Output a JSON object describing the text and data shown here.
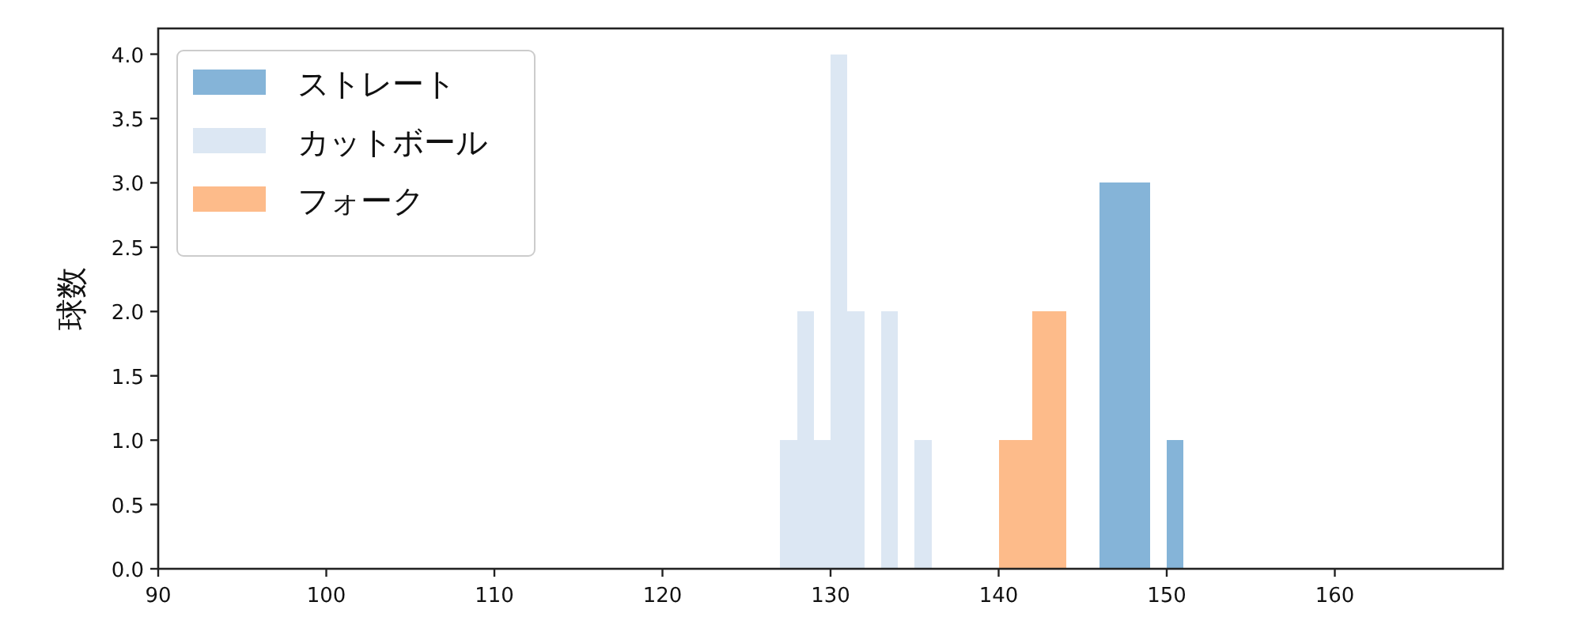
{
  "chart_data": {
    "type": "histogram",
    "ylabel": "球数",
    "xlim": [
      90,
      170
    ],
    "ylim": [
      0,
      4.2
    ],
    "xticks": [
      90,
      100,
      110,
      120,
      130,
      140,
      150,
      160
    ],
    "yticks": [
      {
        "value": 0,
        "label": "0.0"
      },
      {
        "value": 0.5,
        "label": "0.5"
      },
      {
        "value": 1,
        "label": "1.0"
      },
      {
        "value": 1.5,
        "label": "1.5"
      },
      {
        "value": 2,
        "label": "2.0"
      },
      {
        "value": 2.5,
        "label": "2.5"
      },
      {
        "value": 3,
        "label": "3.0"
      },
      {
        "value": 3.5,
        "label": "3.5"
      },
      {
        "value": 4,
        "label": "4.0"
      }
    ],
    "legend": "top left",
    "bins": [
      127,
      128,
      129,
      130,
      131,
      132,
      133,
      134,
      135,
      136,
      137,
      138,
      139,
      140,
      141,
      142,
      143,
      144,
      145,
      146,
      147,
      148,
      149,
      150,
      151
    ],
    "series": [
      {
        "name": "ストレート",
        "color": "#85b4d8",
        "values": [
          0,
          0,
          0,
          0,
          0,
          0,
          0,
          0,
          0,
          0,
          0,
          0,
          0,
          0,
          0,
          0,
          0,
          0,
          0,
          3,
          3,
          3,
          0,
          1
        ]
      },
      {
        "name": "カットボール",
        "color": "#dce7f3",
        "values": [
          1,
          2,
          1,
          4,
          2,
          0,
          2,
          0,
          1,
          0,
          0,
          0,
          0,
          0,
          0,
          0,
          0,
          0,
          0,
          0,
          0,
          0,
          0,
          0
        ]
      },
      {
        "name": "フォーク",
        "color": "#fdbb8a",
        "values": [
          0,
          0,
          0,
          0,
          0,
          0,
          0,
          0,
          0,
          0,
          0,
          0,
          0,
          1,
          1,
          2,
          2,
          0,
          0,
          0,
          0,
          0,
          0,
          0
        ]
      }
    ]
  }
}
